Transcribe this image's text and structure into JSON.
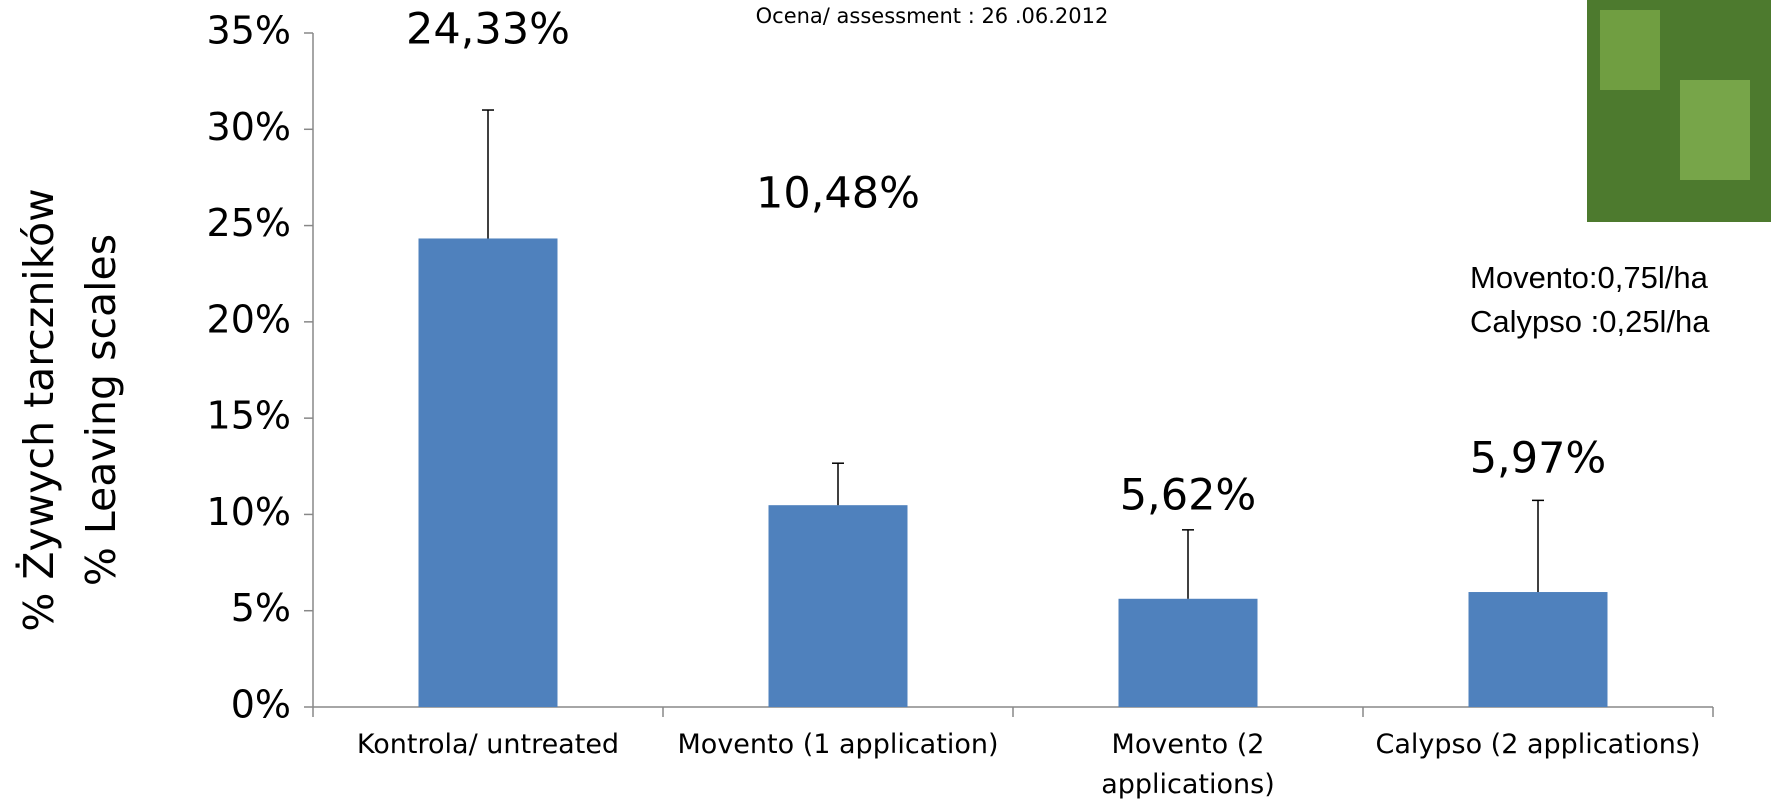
{
  "chart_data": {
    "type": "bar",
    "title": "Ocena/ assessment : 26 .06.2012",
    "ylabel": [
      "% Żywych tarczników",
      "% Leaving scales"
    ],
    "annotations": [
      "Movento:0,75l/ha",
      "Calypso :0,25l/ha"
    ],
    "categories": [
      "Kontrola/ untreated",
      "Movento (1 application)",
      "Movento (2 applications)",
      "Calypso (2 applications)"
    ],
    "values": [
      24.33,
      10.48,
      5.62,
      5.97
    ],
    "value_labels": [
      "24,33%",
      "10,48%",
      "5,62%",
      "5,97%"
    ],
    "errors": [
      6.67,
      2.18,
      3.58,
      4.76
    ],
    "color": "#4f81bd",
    "ylim": [
      0,
      35
    ],
    "yticks": [
      {
        "value": 0,
        "label": "0%"
      },
      {
        "value": 5,
        "label": "5%"
      },
      {
        "value": 10,
        "label": "10%"
      },
      {
        "value": 15,
        "label": "15%"
      },
      {
        "value": 20,
        "label": "20%"
      },
      {
        "value": 25,
        "label": "25%"
      },
      {
        "value": 30,
        "label": "30%"
      },
      {
        "value": 35,
        "label": "35%"
      }
    ],
    "grid": false
  }
}
